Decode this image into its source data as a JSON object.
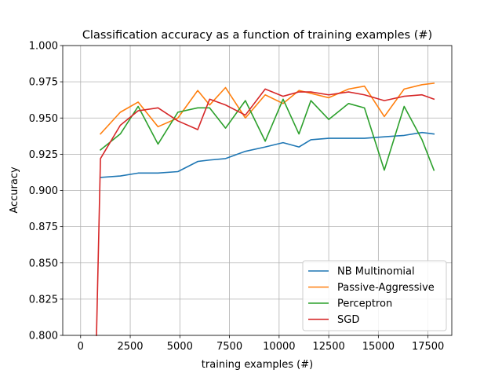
{
  "chart_data": {
    "type": "line",
    "title": "Classification accuracy as a function of training examples (#)",
    "xlabel": "training examples (#)",
    "ylabel": "Accuracy",
    "xlim": [
      -900,
      18700
    ],
    "ylim": [
      0.8,
      1.0
    ],
    "xticks": [
      0,
      2500,
      5000,
      7500,
      10000,
      12500,
      15000,
      17500
    ],
    "xtick_labels": [
      "0",
      "2500",
      "5000",
      "7500",
      "10000",
      "12500",
      "15000",
      "17500"
    ],
    "yticks": [
      0.8,
      0.825,
      0.85,
      0.875,
      0.9,
      0.925,
      0.95,
      0.975,
      1.0
    ],
    "ytick_labels": [
      "0.800",
      "0.825",
      "0.850",
      "0.875",
      "0.900",
      "0.925",
      "0.950",
      "0.975",
      "1.000"
    ],
    "grid": true,
    "legend_position": "lower-right",
    "series": [
      {
        "name": "NB Multinomial",
        "color": "#1f77b4",
        "x": [
          1000,
          2000,
          2900,
          3900,
          4900,
          5900,
          6500,
          7300,
          8300,
          9300,
          10200,
          11000,
          11600,
          12500,
          13500,
          14300,
          15300,
          16300,
          17200,
          17800
        ],
        "y": [
          0.909,
          0.91,
          0.912,
          0.912,
          0.913,
          0.92,
          0.921,
          0.922,
          0.927,
          0.93,
          0.933,
          0.93,
          0.935,
          0.936,
          0.936,
          0.936,
          0.937,
          0.938,
          0.94,
          0.939
        ]
      },
      {
        "name": "Passive-Aggressive",
        "color": "#ff7f0e",
        "x": [
          1000,
          2000,
          2900,
          3900,
          4900,
          5900,
          6500,
          7300,
          8300,
          9300,
          10200,
          11000,
          11600,
          12500,
          13500,
          14300,
          15300,
          16300,
          17200,
          17800
        ],
        "y": [
          0.939,
          0.954,
          0.961,
          0.944,
          0.95,
          0.969,
          0.959,
          0.971,
          0.95,
          0.966,
          0.96,
          0.969,
          0.967,
          0.964,
          0.97,
          0.972,
          0.951,
          0.97,
          0.973,
          0.974
        ]
      },
      {
        "name": "Perceptron",
        "color": "#2ca02c",
        "x": [
          1000,
          2000,
          2900,
          3900,
          4900,
          5900,
          6500,
          7300,
          8300,
          9300,
          10200,
          11000,
          11600,
          12500,
          13500,
          14300,
          15300,
          16300,
          17200,
          17800
        ],
        "y": [
          0.928,
          0.939,
          0.958,
          0.932,
          0.954,
          0.957,
          0.957,
          0.943,
          0.962,
          0.934,
          0.963,
          0.939,
          0.962,
          0.949,
          0.96,
          0.957,
          0.914,
          0.958,
          0.935,
          0.914
        ]
      },
      {
        "name": "SGD",
        "color": "#d62728",
        "x": [
          800,
          1000,
          2000,
          2900,
          3900,
          4900,
          5900,
          6500,
          7300,
          8300,
          9300,
          10200,
          11000,
          11600,
          12500,
          13500,
          14300,
          15300,
          16300,
          17200,
          17800
        ],
        "y": [
          0.8,
          0.922,
          0.945,
          0.955,
          0.957,
          0.948,
          0.942,
          0.963,
          0.959,
          0.952,
          0.97,
          0.965,
          0.968,
          0.968,
          0.966,
          0.968,
          0.966,
          0.962,
          0.965,
          0.966,
          0.963
        ]
      }
    ]
  }
}
